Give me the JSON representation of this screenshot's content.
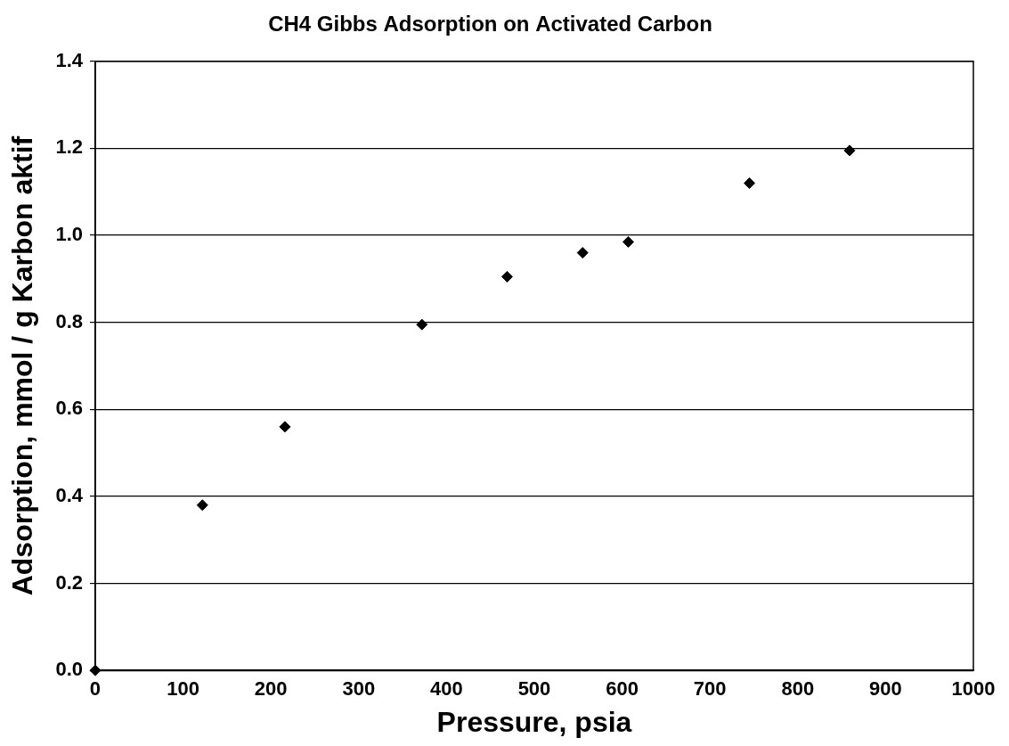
{
  "chart_data": {
    "type": "scatter",
    "title": "CH4 Gibbs Adsorption on Activated Carbon",
    "x_label": "Pressure, psia",
    "y_label": "Adsorption, mmol / g Karbon aktif",
    "x": [
      0,
      122,
      216,
      372,
      469,
      555,
      607,
      745,
      859
    ],
    "values": [
      0,
      0.38,
      0.56,
      0.795,
      0.905,
      0.96,
      0.985,
      1.12,
      1.195
    ],
    "color": "#000000",
    "marker": "diamond",
    "xlim": [
      0,
      1000
    ],
    "xticks": [
      0,
      100,
      200,
      300,
      400,
      500,
      600,
      700,
      800,
      900,
      1000
    ],
    "ylim": [
      0,
      1.4
    ],
    "yticks": [
      {
        "value": 0,
        "label": "0.0"
      },
      0.2,
      0.4,
      0.6,
      0.8,
      {
        "value": 1,
        "label": "1.0"
      },
      1.2,
      1.4
    ],
    "grid": "y"
  }
}
